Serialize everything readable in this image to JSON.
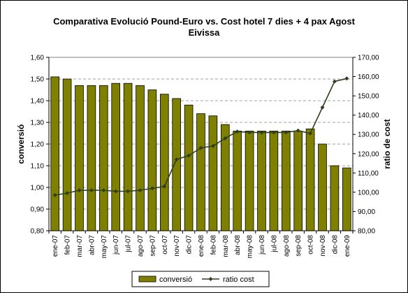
{
  "chart_data": {
    "type": "bar+line",
    "title_line1": "Comparativa Evolució Pound-Euro vs. Cost hotel 7 dies + 4 pax Agost",
    "title_line2": "Eivissa",
    "ylabel_left": "conversió",
    "ylabel_right": "ratio de cost",
    "ylim_left": [
      0.8,
      1.6
    ],
    "ylim_right": [
      80,
      170
    ],
    "yticks_left": [
      "0,80",
      "0,90",
      "1,00",
      "1,10",
      "1,20",
      "1,30",
      "1,40",
      "1,50",
      "1,60"
    ],
    "yticks_right": [
      "80,00",
      "90,00",
      "100,00",
      "110,00",
      "120,00",
      "130,00",
      "140,00",
      "150,00",
      "160,00",
      "170,00"
    ],
    "grid": "horizontal dashed",
    "legend_position": "bottom",
    "categories": [
      "ene-07",
      "feb-07",
      "mar-07",
      "abr-07",
      "may-07",
      "jun-07",
      "jul-07",
      "ago-07",
      "sep-07",
      "oct-07",
      "nov-07",
      "dic-07",
      "ene-08",
      "feb-08",
      "mar-08",
      "abr-08",
      "may-08",
      "jun-08",
      "jul-08",
      "ago-08",
      "sep-08",
      "oct-08",
      "nov-08",
      "dic-08",
      "ene-09"
    ],
    "series": [
      {
        "name": "conversió",
        "kind": "bar",
        "axis": "left",
        "color": "#808000",
        "values": [
          1.51,
          1.5,
          1.47,
          1.47,
          1.47,
          1.48,
          1.48,
          1.47,
          1.45,
          1.43,
          1.41,
          1.38,
          1.34,
          1.33,
          1.29,
          1.26,
          1.26,
          1.26,
          1.26,
          1.26,
          1.26,
          1.27,
          1.2,
          1.1,
          1.09
        ]
      },
      {
        "name": "ratio cost",
        "kind": "line",
        "axis": "right",
        "color": "#2f3f1f",
        "values": [
          98.5,
          99.5,
          101,
          101,
          101,
          100.5,
          100.5,
          101,
          102,
          103,
          117,
          119,
          123,
          124,
          128,
          131.5,
          131,
          131,
          131,
          131,
          132,
          130.5,
          144,
          157.5,
          159
        ]
      }
    ]
  }
}
